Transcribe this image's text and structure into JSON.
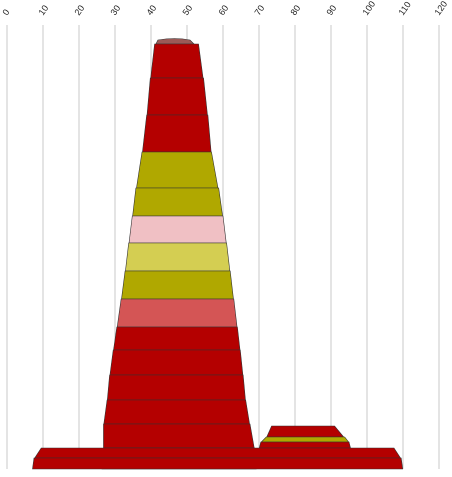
{
  "chart_data": {
    "type": "area",
    "title": "",
    "xlabel": "",
    "ylabel": "",
    "x_ticks": [
      0,
      10,
      20,
      30,
      40,
      50,
      60,
      70,
      80,
      90,
      100,
      110,
      120
    ],
    "xlim": [
      0,
      120
    ],
    "grid": "vertical",
    "legend": "none",
    "shapes": [
      {
        "name": "large-stack",
        "bands": [
          {
            "xl": 40.8,
            "xr": 52.5,
            "color": "#9c5a57"
          },
          {
            "xl": 41.0,
            "xr": 53.2,
            "color": "#b40000"
          },
          {
            "xl": 39.8,
            "xr": 54.6,
            "color": "#b40000"
          },
          {
            "xl": 38.8,
            "xr": 55.8,
            "color": "#b40000"
          },
          {
            "xl": 37.5,
            "xr": 56.8,
            "color": "#b0a800"
          },
          {
            "xl": 35.8,
            "xr": 58.8,
            "color": "#b0a800"
          },
          {
            "xl": 34.8,
            "xr": 60.0,
            "color": "#f0c0c4"
          },
          {
            "xl": 33.8,
            "xr": 61.0,
            "color": "#d4ce52"
          },
          {
            "xl": 32.8,
            "xr": 62.0,
            "color": "#b0a800"
          },
          {
            "xl": 31.7,
            "xr": 63.0,
            "color": "#d45555"
          },
          {
            "xl": 30.5,
            "xr": 64.0,
            "color": "#b40000"
          },
          {
            "xl": 29.5,
            "xr": 64.8,
            "color": "#b40000"
          },
          {
            "xl": 28.5,
            "xr": 65.6,
            "color": "#b40000"
          },
          {
            "xl": 27.8,
            "xr": 66.3,
            "color": "#b40000"
          },
          {
            "xl": 26.8,
            "xr": 67.5,
            "color": "#b40000"
          },
          {
            "xl": 26.8,
            "xr": 68.8,
            "color": "#b40000"
          }
        ]
      },
      {
        "name": "small-stack",
        "bands": [
          {
            "xl": 73.5,
            "xr": 91.0,
            "color": "#b40000"
          },
          {
            "xl": 72.0,
            "xr": 93.8,
            "color": "#b0a800"
          },
          {
            "xl": 70.5,
            "xr": 95.0,
            "color": "#b40000"
          }
        ]
      },
      {
        "name": "base-stack",
        "bands": [
          {
            "xl": 9.5,
            "xr": 107.5,
            "color": "#b40000"
          },
          {
            "xl": 7.5,
            "xr": 109.5,
            "color": "#b40000"
          }
        ]
      }
    ]
  },
  "colors": {
    "dark_red": "#b40000",
    "olive": "#b0a800",
    "light_olive": "#d4ce52",
    "pink": "#f0c0c4",
    "salmon": "#d45555",
    "brown_cap": "#9c5a57",
    "grid": "#c8c8c8"
  }
}
